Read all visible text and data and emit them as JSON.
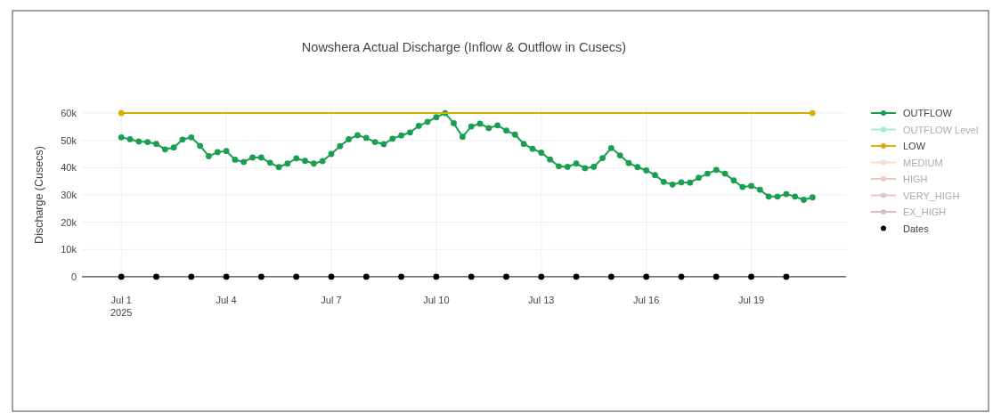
{
  "chart_data": {
    "type": "line",
    "title": "Nowshera  Actual Discharge (Inflow & Outflow in Cusecs)",
    "ylabel": "Discharge (Cusecs)",
    "xlim": [
      "2025-06-29T21:00",
      "2025-07-21T17:00"
    ],
    "xticks": [
      {
        "value": "2025-07-01",
        "label": "Jul 1\n2025"
      },
      {
        "value": "2025-07-04",
        "label": "Jul 4"
      },
      {
        "value": "2025-07-07",
        "label": "Jul 7"
      },
      {
        "value": "2025-07-10",
        "label": "Jul 10"
      },
      {
        "value": "2025-07-13",
        "label": "Jul 13"
      },
      {
        "value": "2025-07-16",
        "label": "Jul 16"
      },
      {
        "value": "2025-07-19",
        "label": "Jul 19"
      }
    ],
    "ylim": [
      -2300,
      62300
    ],
    "yticks": [
      0,
      {
        "value": 10000,
        "label": "10k"
      },
      {
        "value": 20000,
        "label": "20k"
      },
      {
        "value": 30000,
        "label": "30k"
      },
      {
        "value": 40000,
        "label": "40k"
      },
      {
        "value": 50000,
        "label": "50k"
      },
      {
        "value": 60000,
        "label": "60k"
      }
    ],
    "grid": true,
    "legend": "right",
    "marker": "circle",
    "line_style": "solid",
    "series": [
      {
        "name": "OUTFLOW",
        "color": "#1a9e50",
        "x": [
          "2025-07-01T00:00",
          "2025-07-01T06:00",
          "2025-07-01T12:00",
          "2025-07-01T18:00",
          "2025-07-02T00:00",
          "2025-07-02T06:00",
          "2025-07-02T12:00",
          "2025-07-02T18:00",
          "2025-07-03T00:00",
          "2025-07-03T06:00",
          "2025-07-03T12:00",
          "2025-07-03T18:00",
          "2025-07-04T00:00",
          "2025-07-04T06:00",
          "2025-07-04T12:00",
          "2025-07-04T18:00",
          "2025-07-05T00:00",
          "2025-07-05T06:00",
          "2025-07-05T12:00",
          "2025-07-05T18:00",
          "2025-07-06T00:00",
          "2025-07-06T06:00",
          "2025-07-06T12:00",
          "2025-07-06T18:00",
          "2025-07-07T00:00",
          "2025-07-07T06:00",
          "2025-07-07T12:00",
          "2025-07-07T18:00",
          "2025-07-08T00:00",
          "2025-07-08T06:00",
          "2025-07-08T12:00",
          "2025-07-08T18:00",
          "2025-07-09T00:00",
          "2025-07-09T06:00",
          "2025-07-09T12:00",
          "2025-07-09T18:00",
          "2025-07-10T00:00",
          "2025-07-10T06:00",
          "2025-07-10T12:00",
          "2025-07-10T18:00",
          "2025-07-11T00:00",
          "2025-07-11T06:00",
          "2025-07-11T12:00",
          "2025-07-11T18:00",
          "2025-07-12T00:00",
          "2025-07-12T06:00",
          "2025-07-12T12:00",
          "2025-07-12T18:00",
          "2025-07-13T00:00",
          "2025-07-13T06:00",
          "2025-07-13T12:00",
          "2025-07-13T18:00",
          "2025-07-14T00:00",
          "2025-07-14T06:00",
          "2025-07-14T12:00",
          "2025-07-14T18:00",
          "2025-07-15T00:00",
          "2025-07-15T06:00",
          "2025-07-15T12:00",
          "2025-07-15T18:00",
          "2025-07-16T00:00",
          "2025-07-16T06:00",
          "2025-07-16T12:00",
          "2025-07-16T18:00",
          "2025-07-17T00:00",
          "2025-07-17T06:00",
          "2025-07-17T12:00",
          "2025-07-17T18:00",
          "2025-07-18T00:00",
          "2025-07-18T06:00",
          "2025-07-18T12:00",
          "2025-07-18T18:00",
          "2025-07-19T00:00",
          "2025-07-19T06:00",
          "2025-07-19T12:00",
          "2025-07-19T18:00",
          "2025-07-20T00:00",
          "2025-07-20T06:00",
          "2025-07-20T12:00",
          "2025-07-20T18:00"
        ],
        "values": [
          51100,
          50400,
          49600,
          49400,
          48700,
          46700,
          47400,
          50300,
          51100,
          48000,
          44200,
          45700,
          46100,
          42900,
          42100,
          43700,
          43700,
          41800,
          40200,
          41500,
          43400,
          42500,
          41500,
          42400,
          45000,
          47900,
          50400,
          51900,
          50900,
          49400,
          48600,
          50600,
          51800,
          52900,
          55300,
          56800,
          58500,
          60000,
          56300,
          51300,
          55100,
          56100,
          54500,
          55500,
          53600,
          52100,
          48700,
          46900,
          45500,
          43000,
          40500,
          40300,
          41500,
          39800,
          40300,
          43500,
          47200,
          44500,
          41700,
          40200,
          39000,
          37300,
          34800,
          33800,
          34600,
          34500,
          36300,
          37800,
          39200,
          37800,
          35300,
          32900,
          33300,
          31900,
          29400,
          29400,
          30300,
          29400,
          28200,
          29100
        ]
      },
      {
        "name": "OUTFLOW Level",
        "color": "#3dd68c"
      },
      {
        "name": "LOW",
        "color": "#d4b000",
        "x": [
          "2025-07-01T00:00",
          "2025-07-20T18:00"
        ],
        "values": [
          60000,
          60000
        ]
      },
      {
        "name": "MEDIUM",
        "color": "#f5b27a"
      },
      {
        "name": "HIGH",
        "color": "#f08080"
      },
      {
        "name": "VERY_HIGH",
        "color": "#c77b8a"
      },
      {
        "name": "EX_HIGH",
        "color": "#a8708a"
      },
      {
        "name": "Dates",
        "type": "scatter",
        "color": "#000000",
        "x": [
          "2025-07-01",
          "2025-07-02",
          "2025-07-03",
          "2025-07-04",
          "2025-07-05",
          "2025-07-06",
          "2025-07-07",
          "2025-07-08",
          "2025-07-09",
          "2025-07-10",
          "2025-07-11",
          "2025-07-12",
          "2025-07-13",
          "2025-07-14",
          "2025-07-15",
          "2025-07-16",
          "2025-07-17",
          "2025-07-18",
          "2025-07-19",
          "2025-07-20"
        ],
        "values": [
          0,
          0,
          0,
          0,
          0,
          0,
          0,
          0,
          0,
          0,
          0,
          0,
          0,
          0,
          0,
          0,
          0,
          0,
          0,
          0
        ]
      }
    ]
  }
}
